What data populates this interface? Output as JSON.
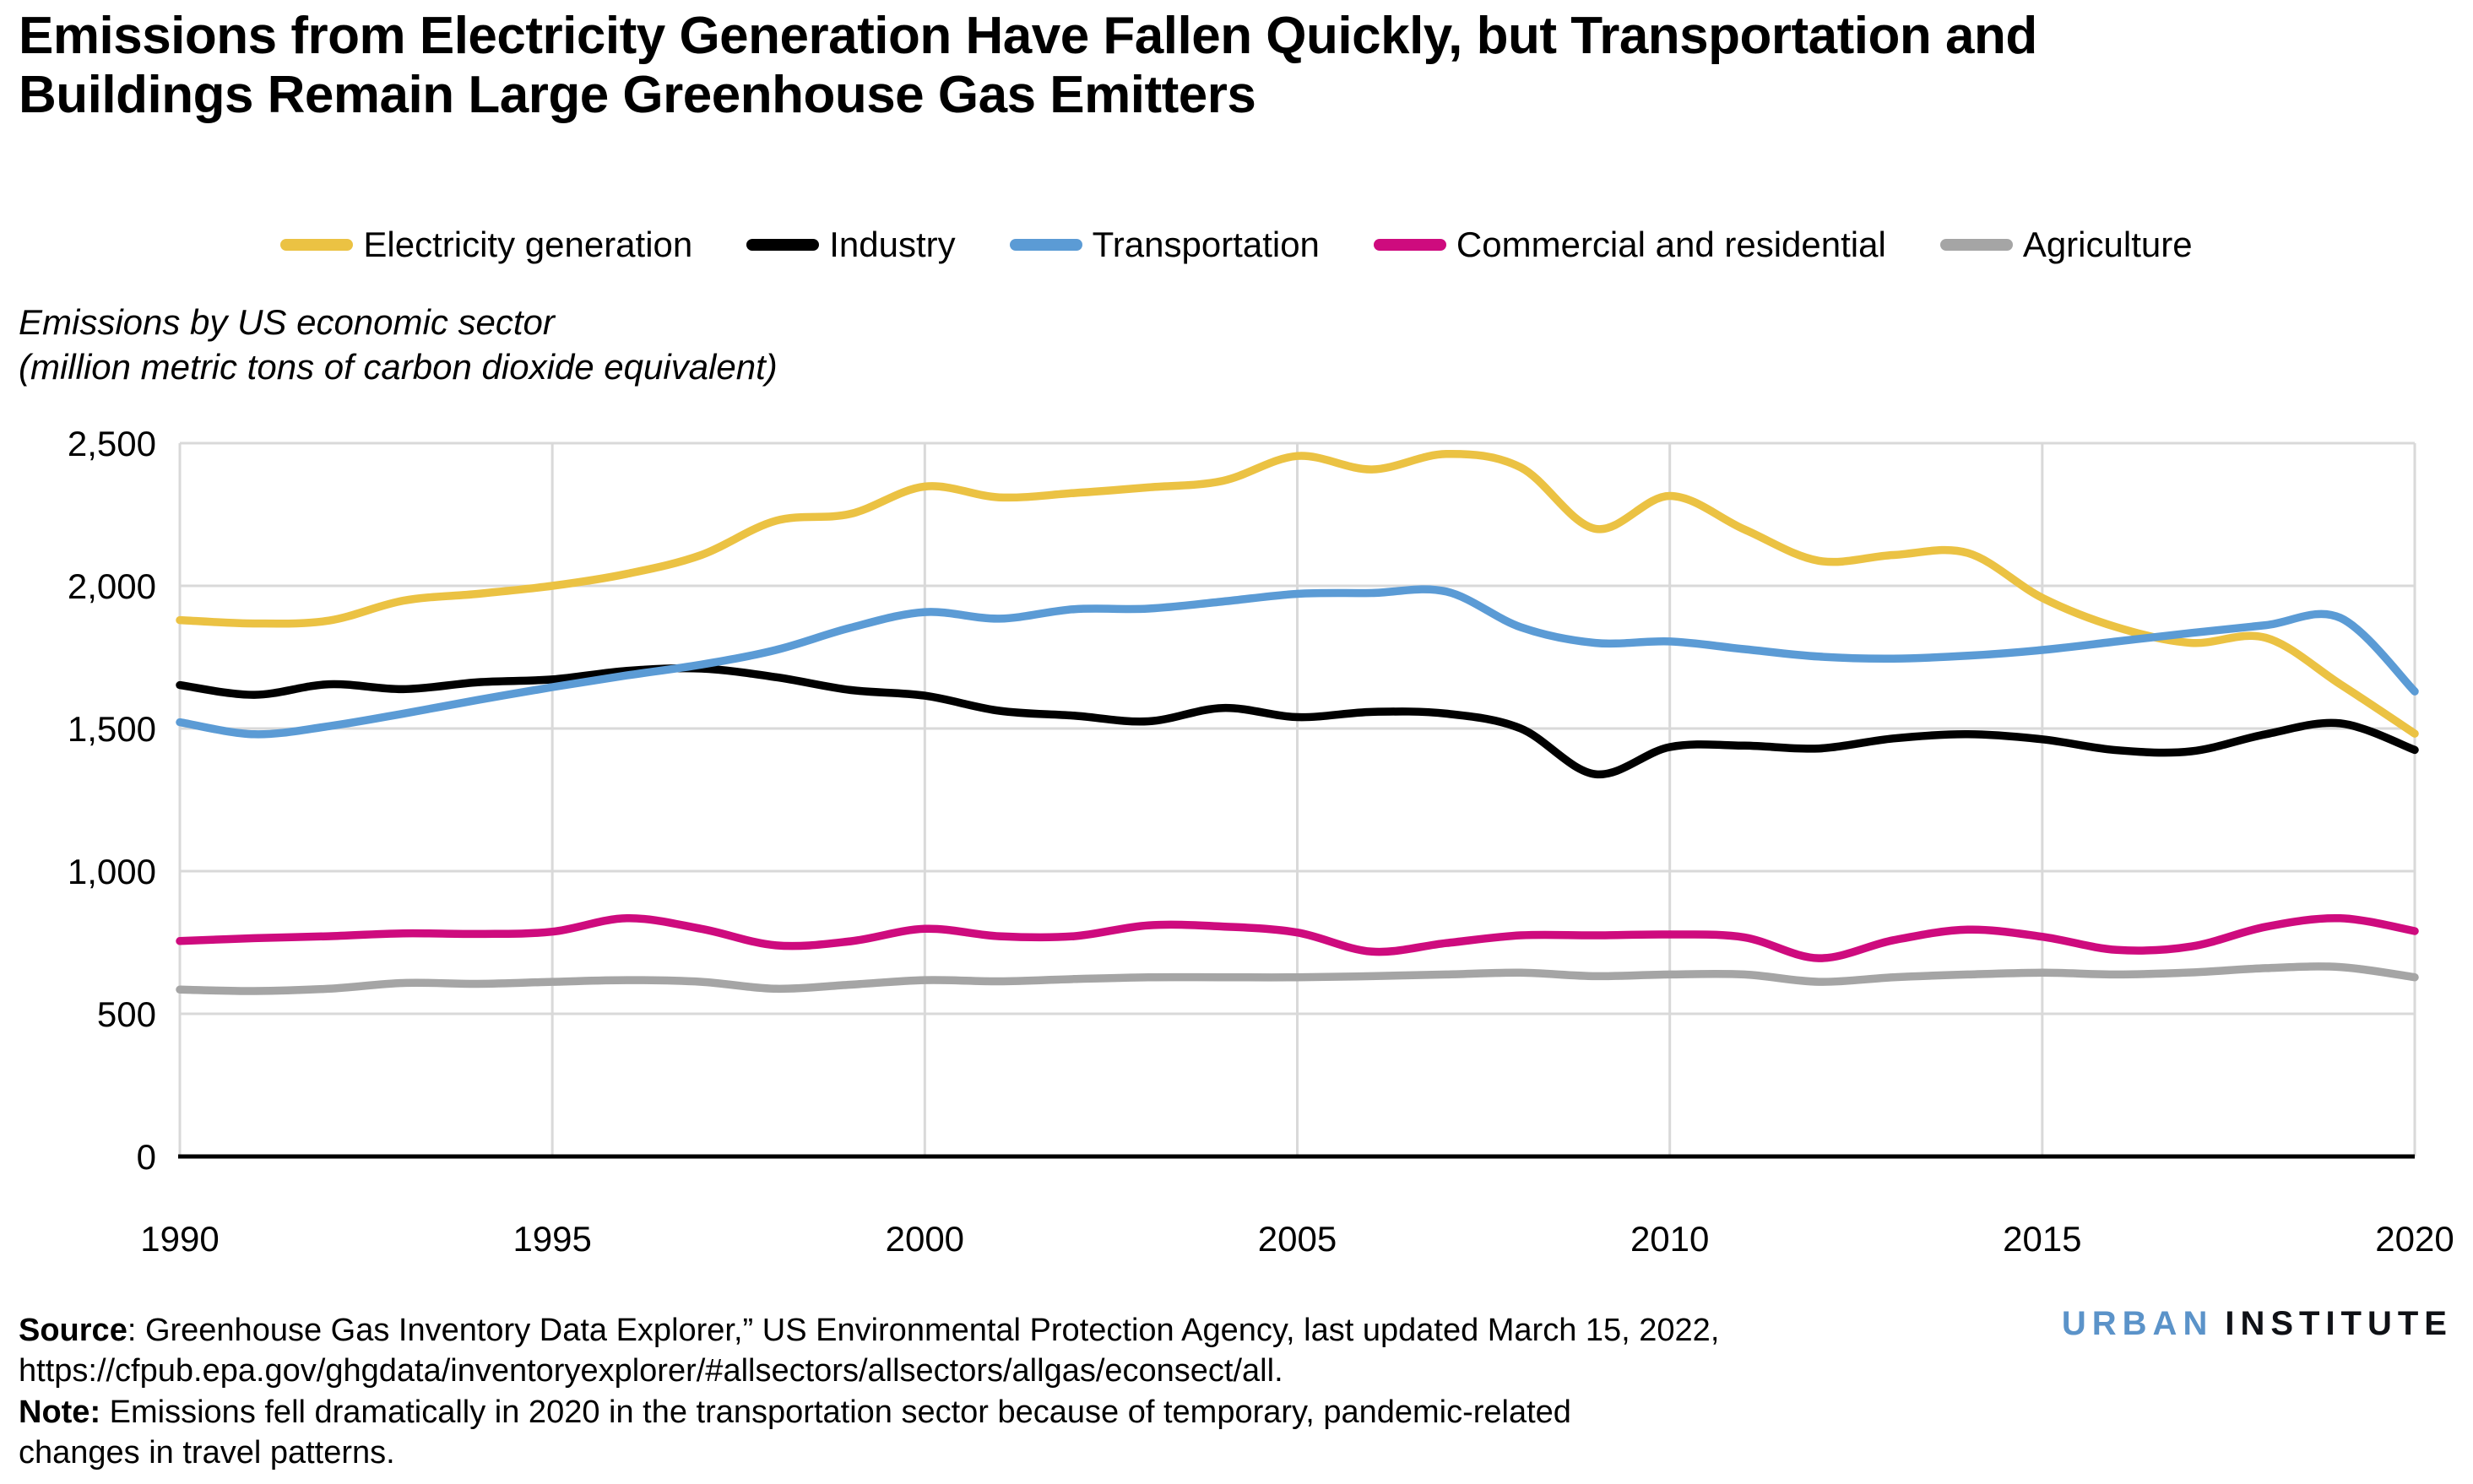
{
  "page": {
    "title": "Emissions from Electricity Generation Have Fallen Quickly, but Transportation and\nBuildings Remain Large Greenhouse Gas Emitters",
    "subtitle": "Emissions by US economic sector\n(million metric tons of carbon dioxide equivalent)"
  },
  "chart_data": {
    "type": "line",
    "title": "Emissions from Electricity Generation Have Fallen Quickly, but Transportation and Buildings Remain Large Greenhouse Gas Emitters",
    "ylabel": "Emissions by US economic sector (million metric tons of carbon dioxide equivalent)",
    "xlabel": "",
    "x": [
      1990,
      1991,
      1992,
      1993,
      1994,
      1995,
      1996,
      1997,
      1998,
      1999,
      2000,
      2001,
      2002,
      2003,
      2004,
      2005,
      2006,
      2007,
      2008,
      2009,
      2010,
      2011,
      2012,
      2013,
      2014,
      2015,
      2016,
      2017,
      2018,
      2019,
      2020
    ],
    "x_ticks": [
      1990,
      1995,
      2000,
      2005,
      2010,
      2015,
      2020
    ],
    "y_ticks": [
      0,
      500,
      1000,
      1500,
      2000,
      2500
    ],
    "ylim": [
      0,
      2500
    ],
    "grid": true,
    "legend_position": "top",
    "line_style": "smooth",
    "series": [
      {
        "name": "Electricity generation",
        "color": "#EBC243",
        "values": [
          1880,
          1868,
          1878,
          1948,
          1972,
          2000,
          2042,
          2108,
          2228,
          2252,
          2348,
          2310,
          2325,
          2345,
          2368,
          2455,
          2408,
          2462,
          2415,
          2200,
          2315,
          2198,
          2088,
          2108,
          2115,
          1958,
          1855,
          1800,
          1818,
          1655,
          1482
        ]
      },
      {
        "name": "Industry",
        "color": "#000000",
        "values": [
          1652,
          1618,
          1655,
          1638,
          1662,
          1672,
          1702,
          1710,
          1680,
          1635,
          1615,
          1562,
          1545,
          1525,
          1572,
          1540,
          1558,
          1552,
          1500,
          1340,
          1435,
          1440,
          1430,
          1465,
          1480,
          1462,
          1424,
          1420,
          1480,
          1518,
          1425
        ]
      },
      {
        "name": "Transportation",
        "color": "#5B9BD5",
        "values": [
          1522,
          1480,
          1508,
          1552,
          1600,
          1645,
          1686,
          1724,
          1775,
          1853,
          1908,
          1885,
          1918,
          1920,
          1945,
          1972,
          1975,
          1980,
          1855,
          1800,
          1805,
          1778,
          1752,
          1745,
          1755,
          1775,
          1805,
          1835,
          1862,
          1888,
          1630
        ]
      },
      {
        "name": "Commercial and residential",
        "color": "#CE0B7E",
        "values": [
          755,
          765,
          772,
          782,
          780,
          788,
          835,
          798,
          740,
          754,
          798,
          772,
          772,
          810,
          806,
          785,
          718,
          748,
          775,
          775,
          778,
          768,
          695,
          758,
          795,
          770,
          724,
          736,
          805,
          835,
          790
        ]
      },
      {
        "name": "Agriculture",
        "color": "#A5A5A5",
        "values": [
          585,
          580,
          588,
          608,
          605,
          612,
          618,
          612,
          588,
          602,
          618,
          614,
          622,
          628,
          628,
          628,
          632,
          638,
          644,
          632,
          638,
          638,
          612,
          628,
          638,
          644,
          638,
          645,
          660,
          664,
          628
        ]
      }
    ],
    "colors": {
      "grid": "#D9D9D9",
      "axis": "#000000"
    }
  },
  "footer": {
    "source_bold": "Source",
    "source_text": ": Greenhouse Gas Inventory Data Explorer,” US Environmental Protection Agency, last updated March 15, 2022,",
    "source_url": "https://cfpub.epa.gov/ghgdata/inventoryexplorer/#allsectors/allsectors/allgas/econsect/all.",
    "note_bold": "Note:",
    "note_text": " Emissions fell dramatically in 2020 in the transportation sector because of temporary, pandemic-related",
    "note_text2": "changes in travel patterns."
  },
  "logo": {
    "part1": "URBAN",
    "part2": "INSTITUTE"
  }
}
